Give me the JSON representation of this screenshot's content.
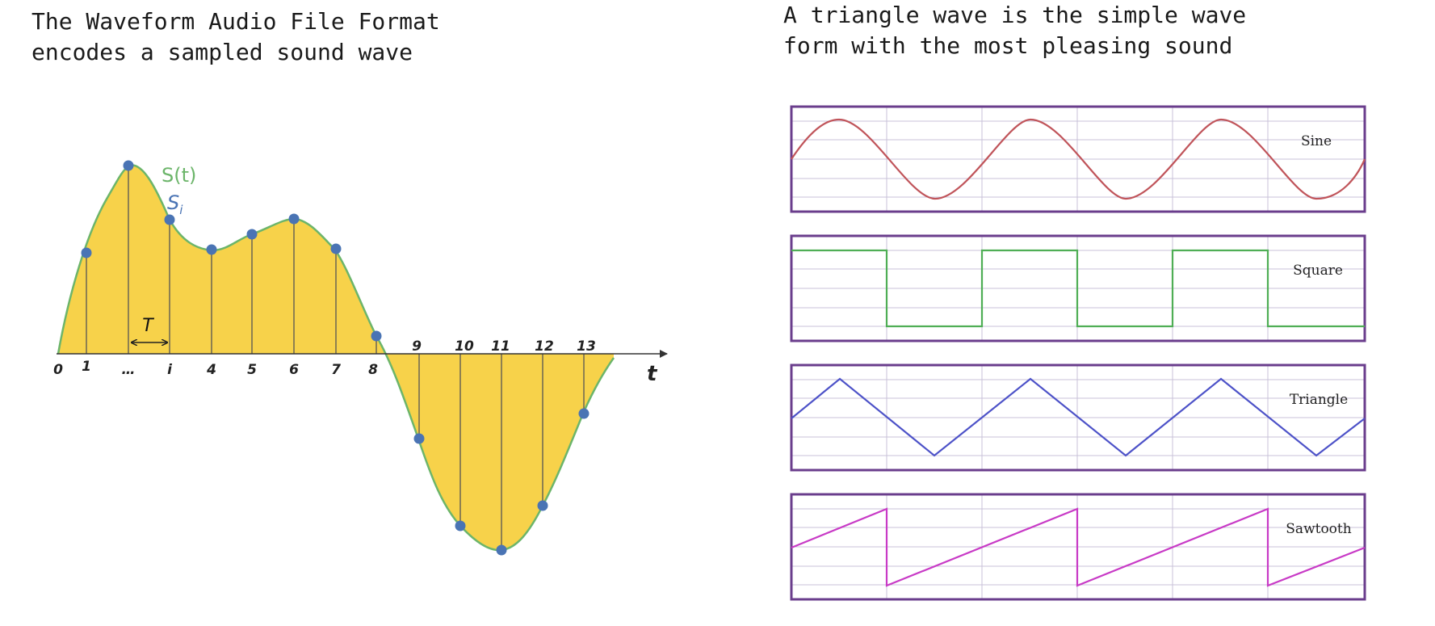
{
  "captions": {
    "left": [
      "The Waveform Audio File Format",
      "encodes a sampled sound wave"
    ],
    "right": [
      "A triangle wave is the simple wave",
      "form with the most pleasing sound"
    ]
  },
  "sampling_diagram": {
    "signal_label": "S(t)",
    "sample_label": "S",
    "sample_subscript": "i",
    "period_label": "T",
    "axis_label": "t",
    "tick_labels_below": [
      "0",
      "1",
      "…",
      "i",
      "4",
      "5",
      "6",
      "7",
      "8"
    ],
    "tick_labels_above": [
      "9",
      "10",
      "11",
      "12",
      "13"
    ],
    "colors": {
      "fill": "#f7d24a",
      "curve": "#6cb56a",
      "sample": "#4a74b4"
    }
  },
  "waveforms": [
    {
      "label": "Sine",
      "color": "#c0545a"
    },
    {
      "label": "Square",
      "color": "#4fae55"
    },
    {
      "label": "Triangle",
      "color": "#4d52c8"
    },
    {
      "label": "Sawtooth",
      "color": "#c83ac6"
    }
  ]
}
